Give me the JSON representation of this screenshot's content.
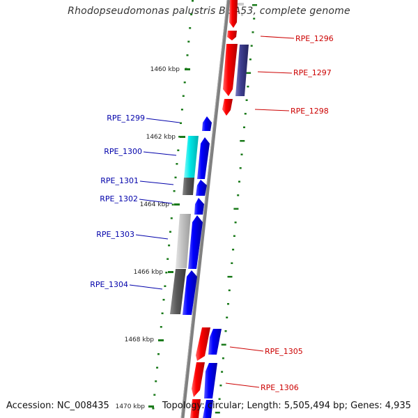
{
  "title": "Rhodopseudomonas palustris BisA53, complete genome",
  "footer": {
    "accession_label": "Accession:",
    "accession": "NC_008435",
    "topology_label": "Topology:",
    "topology": "circular",
    "length_label": "Length:",
    "length": "5,505,494 bp",
    "genes_label": "Genes:",
    "genes": "4,935"
  },
  "colors": {
    "forward_gene": "#ff0000",
    "reverse_gene": "#0000ff",
    "backbone": "#808080",
    "tick": "#1a7a1a",
    "label_forward": "#cc0000",
    "label_reverse": "#0000aa",
    "cyan_feature": "#00e5e5",
    "dark_grey_feature": "#555555",
    "light_grey_feature": "#bbbbbb",
    "purple_feature": "#3a3a8a"
  },
  "kbp_labels": [
    "1460 kbp",
    "1462 kbp",
    "1464 kbp",
    "1466 kbp",
    "1468 kbp",
    "1470 kbp"
  ],
  "gene_labels": {
    "forward": [
      "RPE_1296",
      "RPE_1297",
      "RPE_1298",
      "RPE_1305",
      "RPE_1306"
    ],
    "reverse": [
      "RPE_1299",
      "RPE_1300",
      "RPE_1301",
      "RPE_1302",
      "RPE_1303",
      "RPE_1304"
    ]
  }
}
